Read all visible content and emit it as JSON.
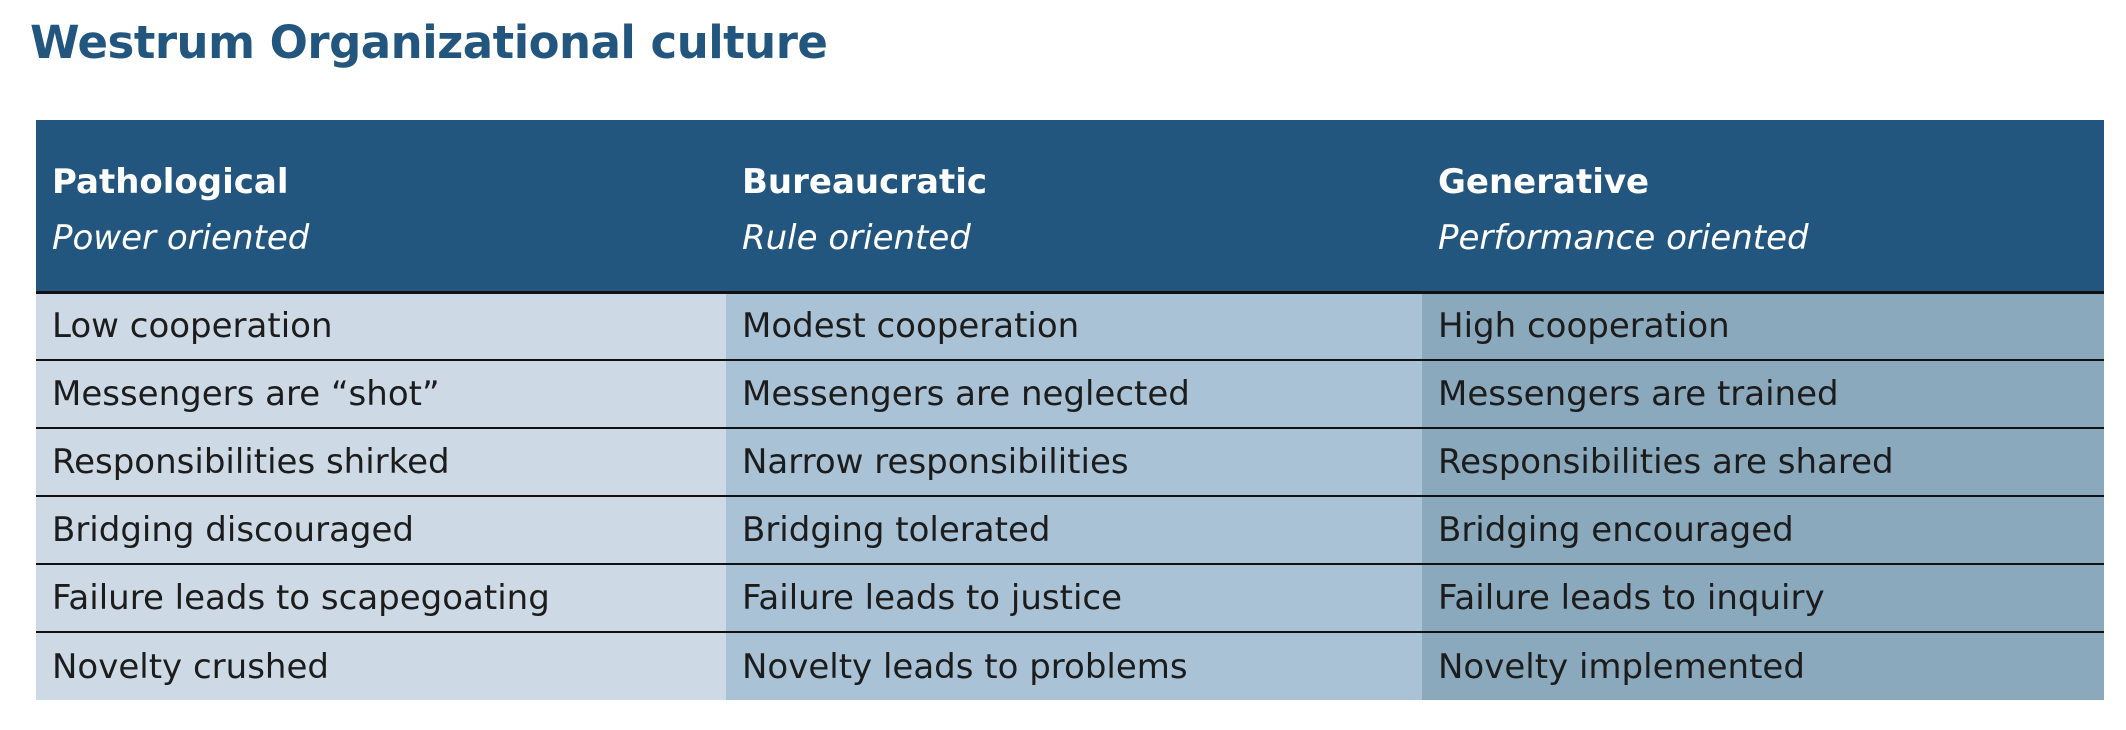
{
  "title": "Westrum Organizational culture",
  "columns": [
    {
      "name": "Pathological",
      "orientation": "Power oriented"
    },
    {
      "name": "Bureaucratic",
      "orientation": "Rule oriented"
    },
    {
      "name": "Generative",
      "orientation": "Performance oriented"
    }
  ],
  "rows": [
    [
      "Low cooperation",
      "Modest cooperation",
      "High cooperation"
    ],
    [
      "Messengers are “shot”",
      "Messengers are neglected",
      "Messengers are trained"
    ],
    [
      "Responsibilities shirked",
      "Narrow responsibilities",
      "Responsibilities are shared"
    ],
    [
      "Bridging discouraged",
      "Bridging tolerated",
      "Bridging encouraged"
    ],
    [
      "Failure leads to scapegoating",
      "Failure leads to justice",
      "Failure leads to inquiry"
    ],
    [
      "Novelty crushed",
      "Novelty leads to problems",
      "Novelty implemented"
    ]
  ],
  "colors": {
    "title": "#23567e",
    "header_background": "#23567e",
    "pathological_column": "#cddae5",
    "bureaucratic_column": "#a9c2d5",
    "generative_column": "#8aa9bd"
  }
}
